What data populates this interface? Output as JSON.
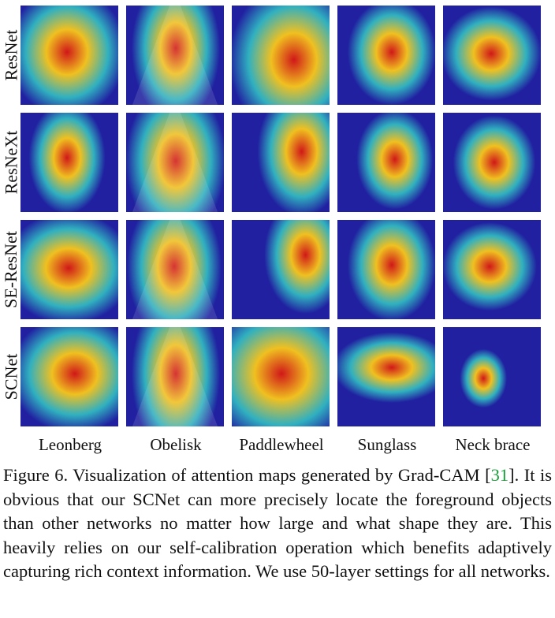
{
  "figure": {
    "rows": [
      "ResNet",
      "ResNeXt",
      "SE-ResNet",
      "SCNet"
    ],
    "columns": [
      "Leonberg",
      "Obelisk",
      "Paddlewheel",
      "Sunglass",
      "Neck brace"
    ]
  },
  "caption": {
    "label": "Figure 6.",
    "text_before": " Visualization of attention maps generated by Grad-CAM [",
    "citation": "31",
    "text_after": "]. It is obvious that our SCNet can more precisely locate the foreground objects than other networks no matter how large and what shape they are. This heavily relies on our self-calibration operation which benefits adaptively capturing rich context information. We use 50-layer settings for all networks."
  },
  "colors": {
    "heat_hot": "#d01818",
    "heat_warm": "#f0c020",
    "heat_cool": "#30b0c0",
    "heat_cold": "#2020a0",
    "citation": "#1a9e3a"
  }
}
